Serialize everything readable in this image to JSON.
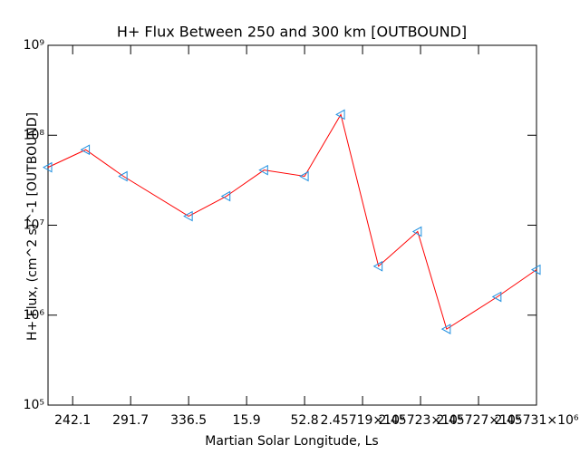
{
  "chart_data": {
    "type": "line",
    "title": "H+ Flux Between 250 and 300 km [OUTBOUND]",
    "x_label": "Martian Solar Longitude, Ls",
    "y_label": "H+ Flux, (cm^2 s)^-1 [OUTBOUND]",
    "x": [
      2456973,
      2456999,
      2457025,
      2457070,
      2457096,
      2457122,
      2457150,
      2457175,
      2457201,
      2457228,
      2457248,
      2457283,
      2457310
    ],
    "series": [
      {
        "color": "#ff0000",
        "marker_color": "#1f8fe0",
        "values": [
          44000000,
          69000000,
          35000000,
          12600000,
          21000000,
          41000000,
          35000000,
          170000000,
          3500000,
          8500000,
          700000,
          1600000,
          3200000
        ]
      }
    ],
    "xlim": [
      2456973,
      2457310
    ],
    "xticks": [
      {
        "value": 2456990,
        "label": "242.1"
      },
      {
        "value": 2457030,
        "label": "291.7"
      },
      {
        "value": 2457070,
        "label": "336.5"
      },
      {
        "value": 2457110,
        "label": "15.9"
      },
      {
        "value": 2457150,
        "label": "52.8"
      },
      {
        "value": 2457190,
        "label": "2.45719×10⁶"
      },
      {
        "value": 2457230,
        "label": "2.45723×10⁶"
      },
      {
        "value": 2457270,
        "label": "2.45727×10⁶"
      },
      {
        "value": 2457310,
        "label": "2.45731×10⁶"
      }
    ],
    "ylim": [
      100000,
      1000000000
    ],
    "yticks": [
      {
        "value": 100000,
        "label": "10⁵"
      },
      {
        "value": 1000000,
        "label": "10⁶"
      },
      {
        "value": 10000000,
        "label": "10⁷"
      },
      {
        "value": 100000000,
        "label": "10⁸"
      },
      {
        "value": 1000000000,
        "label": "10⁹"
      }
    ],
    "ylog": true
  }
}
